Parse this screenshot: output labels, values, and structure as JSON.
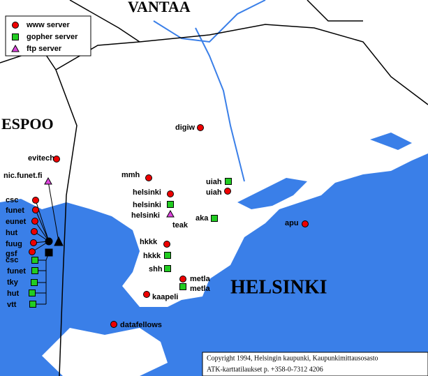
{
  "legend": {
    "www": "www server",
    "gopher": "gopher server",
    "ftp": "ftp server"
  },
  "regions": {
    "vantaa": "VANTAA",
    "espoo": "ESPOO",
    "helsinki": "HELSINKI"
  },
  "servers": {
    "www": [
      "digiw",
      "evitech",
      "mmh",
      "helsinki",
      "uiah",
      "apu",
      "csc",
      "funet",
      "eunet",
      "hut",
      "fuug",
      "gsf",
      "hkkk",
      "metla",
      "kaapeli",
      "datafellows"
    ],
    "gopher": [
      "uiah",
      "helsinki",
      "aka",
      "teak",
      "hkkk",
      "shh",
      "metla",
      "csc",
      "funet",
      "tky",
      "hut",
      "vtt"
    ],
    "ftp": [
      "helsinki",
      "nic.funet.fi"
    ]
  },
  "copyright": [
    "Copyright 1994, Helsingin kaupunki, Kaupunkimittausosasto",
    "ATK-karttatilaukset p. +358-0-7312 4206"
  ]
}
